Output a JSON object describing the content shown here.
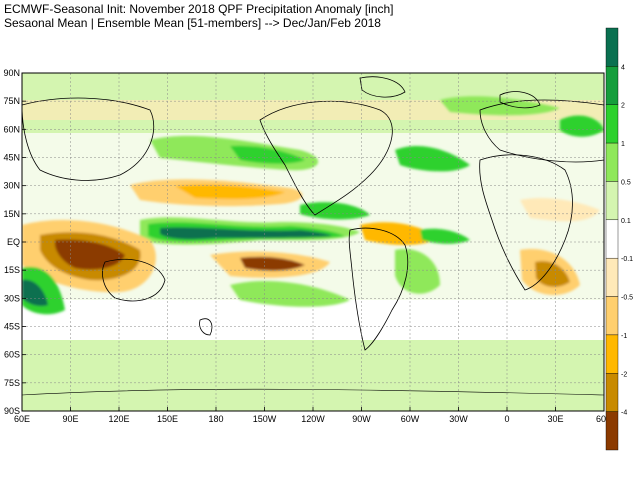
{
  "title_line1": "ECMWF-Seasonal Init: November 2018 QPF Precipitation Anomaly [inch]",
  "title_line2": "Sesaonal Mean | Ensemble Mean [51-members] --> Dec/Jan/Feb 2018",
  "lat_labels": [
    "90N",
    "75N",
    "60N",
    "45N",
    "30N",
    "15N",
    "EQ",
    "15S",
    "30S",
    "45S",
    "60S",
    "75S",
    "90S"
  ],
  "lon_labels": [
    "60E",
    "90E",
    "120E",
    "150E",
    "180",
    "150W",
    "120W",
    "90W",
    "60W",
    "30W",
    "0",
    "30E",
    "60E"
  ],
  "colorbar": {
    "labels": [
      "4",
      "2",
      "1",
      "0.5",
      "0.1",
      "-0.1",
      "-0.5",
      "-1",
      "-2",
      "-4"
    ],
    "colors": [
      "#0a7050",
      "#159e3c",
      "#2dd12d",
      "#8fe85a",
      "#d4f5b0",
      "#ffffff",
      "#ffe9b8",
      "#ffcf6e",
      "#ffb800",
      "#c88a00",
      "#8b3a00"
    ]
  },
  "anomaly_palette": {
    "wet_strong": "#0a7050",
    "wet_med": "#159e3c",
    "wet": "#2dd12d",
    "wet_light": "#8fe85a",
    "wet_faint": "#d4f5b0",
    "dry_faint": "#ffe9b8",
    "dry": "#ffcf6e",
    "dry_med": "#ffb800",
    "dry_strong": "#c88a00",
    "dry_extreme": "#8b3a00"
  }
}
